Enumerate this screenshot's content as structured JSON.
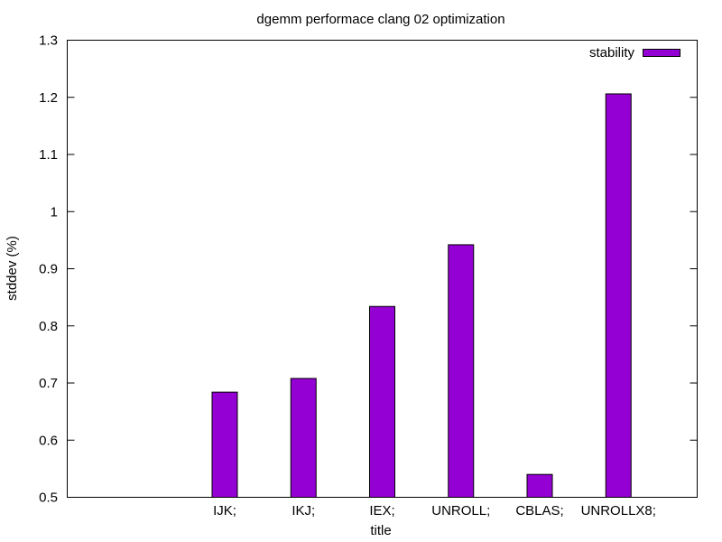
{
  "chart_data": {
    "type": "bar",
    "title": "dgemm performace clang 02 optimization",
    "xlabel": "title",
    "ylabel": "stddev (%)",
    "categories": [
      "IJK;",
      "IKJ;",
      "IEX;",
      "UNROLL;",
      "CBLAS;",
      "UNROLLX8;"
    ],
    "series": [
      {
        "name": "stability",
        "color": "#9400d3",
        "values": [
          0.684,
          0.708,
          0.834,
          0.942,
          0.54,
          1.206
        ]
      }
    ],
    "ylim": [
      0.5,
      1.3
    ],
    "yticks": [
      "0.5",
      "0.6",
      "0.7",
      "0.8",
      "0.9",
      "1",
      "1.1",
      "1.2",
      "1.3"
    ],
    "grid": false,
    "legend_position": "top-right"
  }
}
